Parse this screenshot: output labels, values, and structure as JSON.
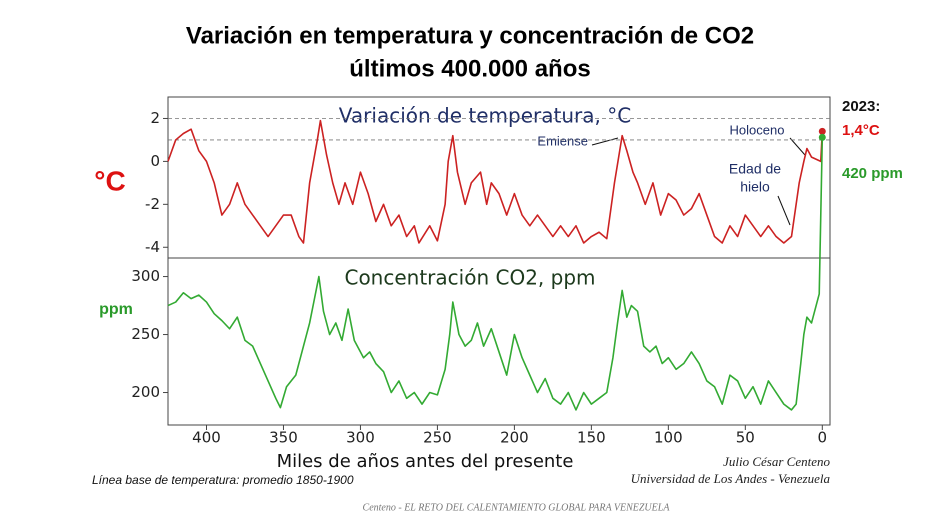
{
  "title": [
    "Variación en temperatura y concentración de CO2",
    "últimos 400.000 años"
  ],
  "chart_data": [
    {
      "type": "line",
      "title": "Variación de temperatura, °C",
      "y_label": "°C",
      "xlim": [
        425,
        -5
      ],
      "ylim": [
        -4.5,
        3
      ],
      "yticks": [
        2,
        0,
        -2,
        -4
      ],
      "ref_lines": [
        2,
        1
      ],
      "series": [
        {
          "name": "Temperatura",
          "color": "#cc2222",
          "x": [
            425,
            420,
            415,
            410,
            405,
            400,
            395,
            390,
            385,
            380,
            375,
            370,
            365,
            360,
            355,
            350,
            345,
            340,
            337,
            333,
            328,
            326,
            322,
            318,
            314,
            310,
            305,
            300,
            295,
            290,
            285,
            280,
            275,
            270,
            265,
            262,
            255,
            250,
            245,
            243,
            240,
            237,
            232,
            228,
            222,
            218,
            215,
            210,
            205,
            200,
            195,
            190,
            185,
            180,
            175,
            170,
            165,
            160,
            155,
            150,
            145,
            140,
            135,
            130,
            127,
            123,
            120,
            115,
            110,
            105,
            100,
            95,
            90,
            85,
            80,
            75,
            70,
            65,
            60,
            55,
            50,
            45,
            40,
            35,
            30,
            25,
            20,
            15,
            12,
            10,
            7,
            4,
            1,
            0
          ],
          "values": [
            0,
            1.0,
            1.3,
            1.5,
            0.5,
            0,
            -1,
            -2.5,
            -2,
            -1,
            -2,
            -2.5,
            -3,
            -3.5,
            -3,
            -2.5,
            -2.5,
            -3.5,
            -3.8,
            -1,
            1,
            1.9,
            0.3,
            -1,
            -2,
            -1,
            -2,
            -0.5,
            -1.5,
            -2.8,
            -2,
            -3,
            -2.5,
            -3.5,
            -3,
            -3.8,
            -3,
            -3.7,
            -2,
            0,
            1.2,
            -0.5,
            -2,
            -1,
            -0.5,
            -2,
            -1,
            -1.5,
            -2.5,
            -1.5,
            -2.5,
            -3,
            -2.5,
            -3,
            -3.5,
            -3,
            -3.5,
            -3,
            -3.8,
            -3.5,
            -3.3,
            -3.6,
            -1,
            1.2,
            0.5,
            -0.5,
            -1,
            -2,
            -1,
            -2.5,
            -1.5,
            -1.8,
            -2.5,
            -2.2,
            -1.5,
            -2.5,
            -3.5,
            -3.8,
            -3,
            -3.5,
            -2.5,
            -3,
            -3.5,
            -3,
            -3.5,
            -3.8,
            -3.5,
            -1,
            0,
            0.6,
            0.2,
            0.1,
            0,
            1.4
          ]
        }
      ]
    },
    {
      "type": "line",
      "title": "Concentración CO2, ppm",
      "y_label": "ppm",
      "x_label": "Miles de años antes del presente",
      "xlim": [
        425,
        -5
      ],
      "xticks": [
        400,
        350,
        300,
        250,
        200,
        150,
        100,
        50,
        0
      ],
      "ylim": [
        172,
        316
      ],
      "yticks": [
        300,
        250,
        200
      ],
      "series": [
        {
          "name": "CO2",
          "color": "#33aa33",
          "x": [
            425,
            420,
            415,
            410,
            405,
            400,
            395,
            390,
            385,
            380,
            375,
            370,
            365,
            360,
            355,
            352,
            348,
            342,
            338,
            333,
            330,
            327,
            324,
            320,
            316,
            312,
            308,
            304,
            298,
            294,
            290,
            285,
            280,
            275,
            270,
            265,
            260,
            255,
            250,
            245,
            242,
            240,
            236,
            232,
            228,
            224,
            220,
            215,
            210,
            205,
            200,
            195,
            190,
            185,
            180,
            175,
            170,
            165,
            160,
            155,
            150,
            145,
            140,
            136,
            133,
            130,
            127,
            124,
            120,
            116,
            112,
            108,
            104,
            100,
            95,
            90,
            85,
            80,
            75,
            70,
            65,
            60,
            55,
            50,
            45,
            40,
            35,
            30,
            25,
            20,
            17,
            14,
            12,
            10,
            7,
            4,
            2,
            0
          ],
          "values": [
            275,
            278,
            286,
            281,
            284,
            278,
            268,
            262,
            255,
            265,
            245,
            240,
            225,
            210,
            195,
            187,
            205,
            215,
            235,
            260,
            280,
            300,
            270,
            250,
            260,
            245,
            272,
            245,
            230,
            235,
            225,
            218,
            200,
            210,
            195,
            200,
            190,
            200,
            198,
            220,
            250,
            278,
            250,
            240,
            245,
            260,
            240,
            255,
            235,
            215,
            250,
            230,
            215,
            200,
            212,
            195,
            190,
            200,
            185,
            200,
            190,
            195,
            200,
            230,
            260,
            288,
            265,
            275,
            270,
            240,
            235,
            240,
            225,
            230,
            220,
            225,
            235,
            225,
            210,
            205,
            190,
            215,
            210,
            195,
            205,
            190,
            210,
            200,
            190,
            185,
            190,
            225,
            250,
            265,
            260,
            275,
            285,
            420
          ]
        }
      ]
    }
  ],
  "annotations": {
    "emiense": "Emiense",
    "holoceno": "Holoceno",
    "edad": [
      "Edad de",
      "hielo"
    ],
    "year": "2023:",
    "temp_now": "1,4°C",
    "co2_now": "420 ppm"
  },
  "notes": {
    "baseline": "Línea base de temperatura: promedio 1850-1900",
    "author": "Julio César Centeno",
    "institution": "Universidad de Los Andes - Venezuela",
    "footer": "Centeno - EL RETO DEL CALENTAMIENTO GLOBAL PARA VENEZUELA"
  }
}
